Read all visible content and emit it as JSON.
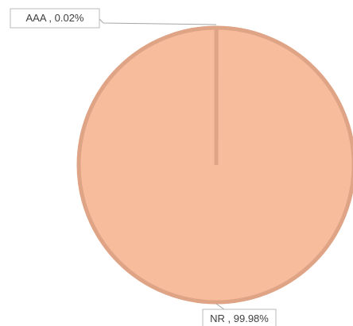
{
  "chart_data": {
    "type": "pie",
    "categories": [
      "AAA",
      "NR"
    ],
    "values": [
      0.02,
      99.98
    ],
    "unit": "%",
    "labels": [
      "AAA , 0.02%",
      "NR , 99.98%"
    ],
    "colors": {
      "NR": "#F6BC9B",
      "AAA": "#E3A688",
      "border": "#DEA485"
    },
    "legend": "none",
    "data_labels": "outside with leader lines"
  }
}
